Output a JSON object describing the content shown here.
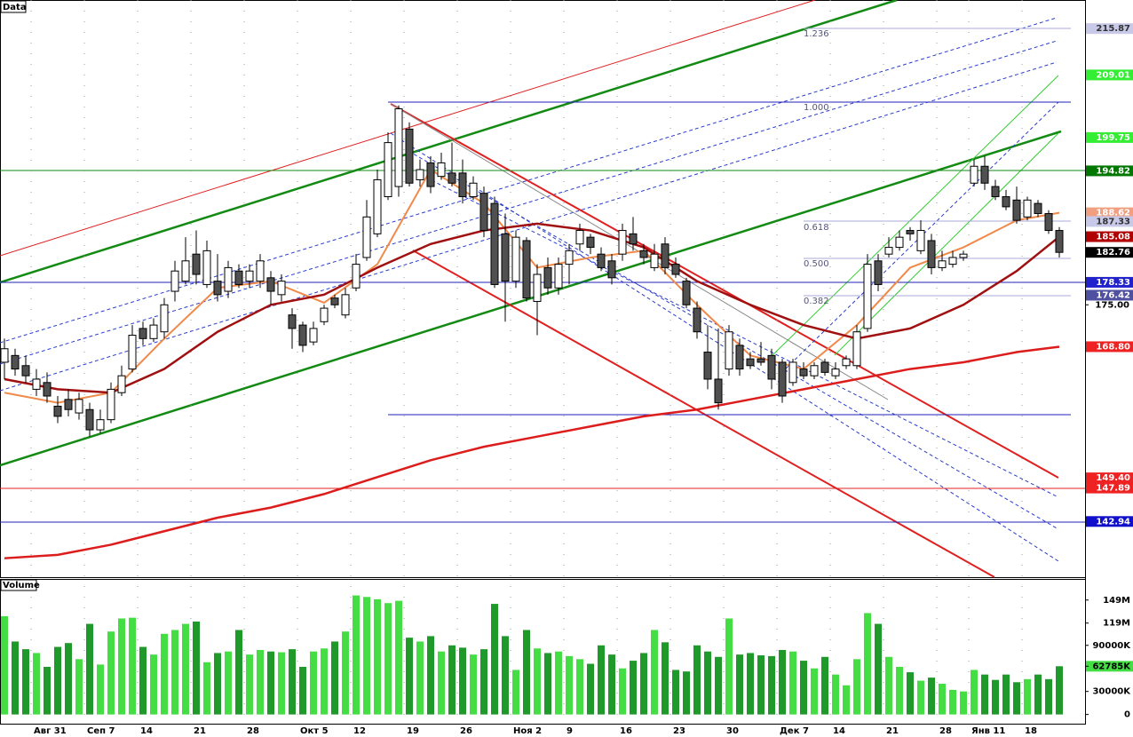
{
  "chart_data": {
    "type": "candlestick",
    "title": "Data",
    "volume_title": "Volume",
    "categories": [
      null,
      null,
      null,
      "Авг 31",
      null,
      null,
      null,
      null,
      "Сеп 7",
      null,
      null,
      null,
      null,
      "14",
      null,
      null,
      null,
      null,
      "21",
      null,
      null,
      null,
      null,
      "28",
      null,
      null,
      null,
      null,
      "Окт 5",
      null,
      null,
      null,
      null,
      "12",
      null,
      null,
      null,
      null,
      "19",
      null,
      null,
      null,
      null,
      "26",
      null,
      null,
      null,
      null,
      "Ноя 2",
      null,
      null,
      null,
      null,
      "9",
      null,
      null,
      null,
      null,
      "16",
      null,
      null,
      null,
      null,
      "23",
      null,
      null,
      null,
      null,
      "30",
      null,
      null,
      null,
      null,
      "Дек 7",
      null,
      null,
      null,
      null,
      "14",
      null,
      null,
      null,
      null,
      "21",
      null,
      null,
      null,
      null,
      "28",
      null,
      null,
      "Янв 11",
      null,
      null,
      null,
      null,
      "18",
      null,
      null,
      null
    ],
    "open": [
      166.5,
      167.5,
      166.0,
      162.5,
      163.5,
      160.0,
      161.0,
      159.0,
      159.5,
      156.5,
      158.0,
      162.0,
      165.5,
      171.5,
      170.0,
      171.0,
      177.0,
      178.5,
      182.5,
      178.0,
      178.5,
      177.0,
      180.0,
      178.5,
      178.5,
      179.0,
      176.5,
      173.5,
      172.0,
      169.5,
      172.5,
      176.0,
      173.5,
      177.5,
      182.0,
      185.5,
      191.0,
      192.5,
      201.0,
      193.5,
      196.0,
      194.0,
      194.5,
      194.5,
      191.0,
      191.5,
      190.0,
      185.5,
      178.5,
      184.5,
      175.5,
      180.5,
      177.5,
      181.0,
      184.0,
      185.0,
      182.5,
      181.5,
      182.5,
      185.5,
      183.0,
      180.5,
      184.0,
      181.0,
      178.5,
      174.5,
      168.0,
      164.0,
      165.5,
      169.0,
      167.0,
      167.0,
      167.5,
      166.5,
      163.5,
      165.5,
      164.5,
      166.5,
      164.5,
      166.0,
      166.0,
      171.5,
      181.5,
      182.5,
      183.5,
      186.0,
      183.0,
      184.5,
      180.5,
      181.0,
      182.0,
      193.0,
      195.5,
      192.5,
      191.0,
      190.5,
      188.0,
      190.0,
      188.5,
      186.0
    ],
    "high": [
      170.0,
      168.5,
      167.5,
      165.5,
      165.0,
      161.5,
      162.5,
      162.0,
      160.5,
      159.5,
      163.5,
      166.0,
      172.0,
      172.5,
      173.0,
      176.0,
      181.5,
      185.0,
      186.0,
      184.5,
      182.5,
      181.5,
      181.0,
      181.0,
      182.5,
      180.0,
      179.5,
      174.5,
      172.5,
      172.5,
      175.0,
      176.5,
      177.5,
      182.5,
      190.5,
      195.0,
      200.5,
      204.5,
      202.0,
      196.5,
      197.0,
      197.5,
      199.0,
      196.5,
      194.0,
      192.5,
      191.0,
      188.5,
      186.0,
      185.0,
      181.0,
      182.0,
      182.0,
      184.0,
      187.0,
      185.5,
      183.5,
      182.5,
      187.0,
      188.0,
      184.0,
      184.0,
      185.0,
      182.0,
      179.0,
      175.5,
      172.0,
      171.5,
      172.0,
      170.0,
      168.0,
      169.5,
      168.5,
      167.0,
      167.0,
      166.5,
      166.5,
      167.0,
      166.5,
      167.5,
      172.0,
      182.5,
      182.5,
      185.0,
      186.0,
      186.5,
      187.5,
      185.5,
      183.0,
      183.0,
      183.0,
      196.5,
      197.0,
      193.5,
      192.0,
      192.5,
      191.0,
      190.5,
      189.0,
      186.5
    ],
    "low": [
      164.0,
      164.5,
      163.5,
      161.5,
      160.5,
      157.5,
      158.5,
      158.0,
      155.5,
      156.0,
      157.5,
      161.5,
      165.0,
      169.0,
      169.5,
      170.0,
      175.5,
      178.0,
      178.0,
      177.5,
      175.5,
      176.0,
      177.5,
      177.5,
      177.5,
      175.0,
      175.5,
      168.5,
      168.0,
      169.0,
      172.0,
      174.5,
      173.0,
      177.0,
      181.5,
      185.0,
      190.5,
      191.0,
      192.5,
      192.5,
      191.5,
      193.5,
      192.5,
      190.0,
      190.5,
      185.0,
      177.5,
      172.5,
      177.5,
      175.5,
      170.5,
      176.5,
      176.5,
      178.0,
      183.0,
      182.5,
      180.0,
      178.0,
      181.5,
      183.0,
      181.0,
      180.0,
      179.5,
      179.0,
      174.5,
      170.0,
      162.5,
      159.5,
      164.5,
      164.5,
      165.5,
      166.0,
      162.5,
      160.5,
      163.0,
      164.0,
      164.0,
      164.5,
      164.0,
      165.5,
      165.5,
      171.0,
      177.0,
      182.0,
      183.0,
      184.5,
      182.5,
      179.5,
      180.0,
      180.5,
      181.5,
      192.5,
      192.0,
      190.5,
      189.0,
      187.0,
      187.5,
      188.0,
      185.5,
      182.0
    ],
    "close": [
      168.5,
      165.5,
      164.5,
      164.0,
      161.5,
      158.5,
      159.5,
      161.0,
      156.5,
      158.0,
      162.5,
      164.5,
      170.5,
      170.0,
      172.0,
      175.0,
      180.0,
      181.5,
      179.5,
      183.0,
      176.5,
      180.5,
      178.0,
      180.0,
      181.5,
      177.0,
      178.5,
      171.5,
      169.0,
      171.5,
      174.5,
      175.0,
      176.5,
      181.0,
      188.0,
      193.5,
      199.0,
      204.0,
      193.0,
      195.0,
      192.5,
      196.0,
      193.0,
      191.0,
      193.0,
      186.0,
      178.0,
      178.5,
      185.0,
      176.0,
      179.5,
      177.5,
      181.0,
      183.0,
      186.0,
      183.5,
      180.5,
      179.0,
      186.0,
      184.0,
      182.0,
      182.5,
      180.5,
      179.5,
      175.0,
      171.0,
      164.0,
      160.5,
      171.0,
      165.5,
      166.0,
      166.5,
      164.0,
      161.5,
      166.5,
      164.5,
      166.0,
      165.0,
      165.5,
      167.0,
      171.0,
      181.0,
      178.0,
      183.5,
      185.0,
      185.5,
      186.0,
      180.5,
      181.5,
      182.0,
      182.5,
      195.5,
      193.0,
      191.0,
      189.5,
      187.5,
      190.5,
      188.5,
      186.0,
      182.76
    ],
    "volume": [
      128,
      95,
      85,
      80,
      62,
      88,
      93,
      72,
      118,
      65,
      108,
      125,
      126,
      88,
      78,
      105,
      110,
      118,
      121,
      68,
      80,
      82,
      110,
      78,
      84,
      82,
      81,
      85,
      62,
      82,
      86,
      95,
      108,
      155,
      153,
      150,
      145,
      148,
      100,
      95,
      102,
      82,
      90,
      87,
      78,
      85,
      144,
      102,
      58,
      110,
      86,
      80,
      82,
      76,
      72,
      66,
      90,
      78,
      60,
      70,
      80,
      110,
      94,
      58,
      56,
      90,
      82,
      75,
      125,
      78,
      80,
      77,
      76,
      84,
      82,
      70,
      60,
      75,
      52,
      38,
      72,
      132,
      118,
      75,
      62,
      55,
      44,
      48,
      40,
      32,
      30,
      58,
      52,
      45,
      52,
      42,
      46,
      52,
      46,
      62.785
    ],
    "colors": {
      "up_candle": "#ffffff",
      "down_candle": "#505050",
      "up_volume": "#44dd44",
      "down_volume": "#1f9a2a"
    },
    "overlay_x": [
      0,
      5,
      10,
      15,
      20,
      25,
      30,
      35,
      40,
      45,
      50,
      55,
      60,
      65,
      70,
      75,
      80,
      85,
      90,
      95,
      99
    ],
    "overlays": [
      {
        "color": "#f08a4b",
        "width": 2,
        "values": [
          162,
          160.5,
          162,
          170,
          177.5,
          178.5,
          175.3,
          181,
          195,
          190,
          180.5,
          182,
          183,
          175,
          167.5,
          165.5,
          172,
          180.5,
          183.5,
          187.5,
          188.62
        ]
      },
      {
        "color": "#a01010",
        "width": 2.5,
        "values": [
          164,
          162.5,
          162,
          165.5,
          171,
          175,
          176.5,
          180.5,
          184,
          186,
          187,
          186,
          183.5,
          178.5,
          175,
          172,
          170,
          171.5,
          175,
          180,
          185.08
        ]
      },
      {
        "color": "#dd1c1c",
        "width": 2.5,
        "values": [
          137.5,
          138,
          139.5,
          141.5,
          143.5,
          145,
          147,
          149.5,
          152,
          154,
          155.5,
          157,
          158.5,
          159.5,
          161,
          162.5,
          164,
          165.5,
          166.5,
          168,
          168.8
        ]
      }
    ],
    "ylim": [
      134.7,
      220.1
    ],
    "yticks": [
      {
        "value": 175,
        "label": "175.00"
      }
    ],
    "price_labels": [
      {
        "value": 215.87,
        "color": "#c8c8e8",
        "text_color": "#333333"
      },
      {
        "value": 209.01,
        "color": "#33ee33",
        "text_color": "#ffffff"
      },
      {
        "value": 199.75,
        "color": "#33ee33",
        "text_color": "#ffffff"
      },
      {
        "value": 194.82,
        "color": "#007700",
        "text_color": "#ffffff"
      },
      {
        "value": 188.62,
        "color": "#f0a080",
        "text_color": "#ffffff"
      },
      {
        "value": 187.33,
        "color": "#c8c8e8",
        "text_color": "#333333"
      },
      {
        "value": 185.08,
        "color": "#b00000",
        "text_color": "#ffffff"
      },
      {
        "value": 182.76,
        "color": "#000000",
        "text_color": "#ffffff"
      },
      {
        "value": 178.33,
        "color": "#2222cc",
        "text_color": "#ffffff"
      },
      {
        "value": 176.42,
        "color": "#5050a0",
        "text_color": "#ffffff"
      },
      {
        "value": 168.8,
        "label": "168.80",
        "color": "#ee2222",
        "text_color": "#ffffff"
      },
      {
        "value": 149.4,
        "label": "149.40",
        "color": "#ee2222",
        "text_color": "#ffffff"
      },
      {
        "value": 147.89,
        "color": "#ee2222",
        "text_color": "#ffffff"
      },
      {
        "value": 142.94,
        "color": "#1010cc",
        "text_color": "#ffffff"
      }
    ],
    "fib_labels": [
      "1.236",
      "1.000",
      "0.618",
      "0.500",
      "0.382"
    ],
    "vlim": [
      -12,
      173
    ],
    "vticks": [
      {
        "value": 149,
        "label": "149M"
      },
      {
        "value": 119,
        "label": "119M"
      },
      {
        "value": 90,
        "label": "90000K"
      },
      {
        "value": 62.785,
        "label": "62785K",
        "color": "#44dd44"
      },
      {
        "value": 30,
        "label": "30000K"
      },
      0
    ]
  }
}
